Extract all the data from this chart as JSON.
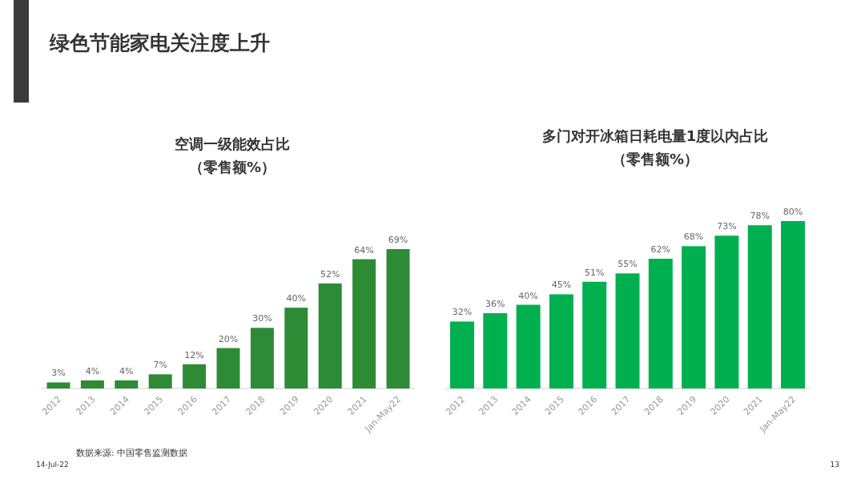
{
  "chart_data": [
    {
      "type": "bar",
      "title": "空调一级能效占比",
      "subtitle": "（零售额%）",
      "categories": [
        "2012",
        "2013",
        "2014",
        "2015",
        "2016",
        "2017",
        "2018",
        "2019",
        "2020",
        "2021",
        "Jan-May22"
      ],
      "values": [
        3,
        4,
        4,
        7,
        12,
        20,
        30,
        40,
        52,
        64,
        69
      ],
      "value_labels": [
        "3%",
        "4%",
        "4%",
        "7%",
        "12%",
        "20%",
        "30%",
        "40%",
        "52%",
        "64%",
        "69%"
      ],
      "color": "#2e8b35",
      "annotations": [
        "绿色节能家电关注度上升",
        "数据来源: 中国零售监测数据",
        "14-Jul-22"
      ]
    },
    {
      "type": "bar",
      "title": "多门对开冰箱日耗电量1度以内占比",
      "subtitle": "（零售额%）",
      "categories": [
        "2012",
        "2013",
        "2014",
        "2015",
        "2016",
        "2017",
        "2018",
        "2019",
        "2020",
        "2021",
        "Jan-May22"
      ],
      "values": [
        32,
        36,
        40,
        45,
        51,
        55,
        62,
        68,
        73,
        78,
        80
      ],
      "value_labels": [
        "32%",
        "36%",
        "40%",
        "45%",
        "51%",
        "55%",
        "62%",
        "68%",
        "73%",
        "78%",
        "80%"
      ],
      "color": "#00b04f",
      "annotations": [
        "13"
      ]
    }
  ]
}
